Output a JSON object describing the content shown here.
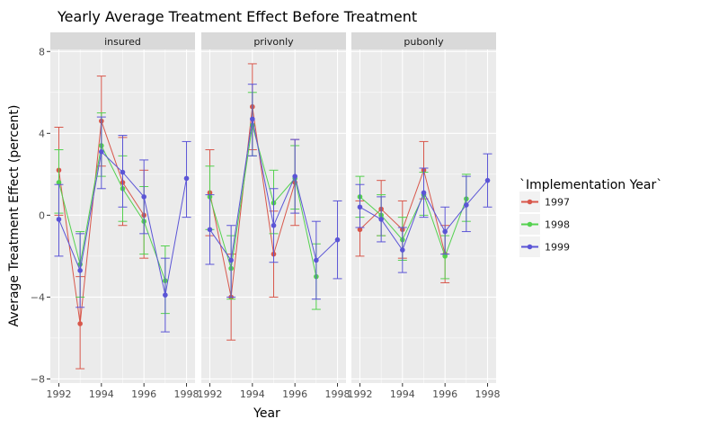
{
  "chart_data": {
    "type": "line",
    "title": "Yearly Average Treatment Effect Before Treatment",
    "xlabel": "Year",
    "ylabel": "Average Treatment Effect (percent)",
    "xlim": [
      1991.6,
      1998.4
    ],
    "ylim": [
      -8.2,
      8.1
    ],
    "x_ticks": [
      1992,
      1994,
      1996,
      1998
    ],
    "y_ticks": [
      -8,
      -4,
      0,
      4,
      8
    ],
    "grid": true,
    "legend": {
      "title": "`Implementation Year`",
      "placement": "right",
      "entries": [
        "1997",
        "1998",
        "1999"
      ]
    },
    "colors": {
      "1997": "#d8574b",
      "1998": "#54d14f",
      "1999": "#5b55d6",
      "panel_bg": "#ebebeb",
      "strip_bg": "#d9d9d9"
    },
    "panels": [
      {
        "label": "insured",
        "series": [
          {
            "name": "1997",
            "points": [
              {
                "x": 1992,
                "y": 2.2,
                "lo": 0.0,
                "hi": 4.3
              },
              {
                "x": 1993,
                "y": -5.3,
                "lo": -7.5,
                "hi": -3.0
              },
              {
                "x": 1994,
                "y": 4.6,
                "lo": 2.4,
                "hi": 6.8
              },
              {
                "x": 1995,
                "y": 1.6,
                "lo": -0.5,
                "hi": 3.8
              },
              {
                "x": 1996,
                "y": 0.0,
                "lo": -2.1,
                "hi": 2.2
              }
            ]
          },
          {
            "name": "1998",
            "points": [
              {
                "x": 1992,
                "y": 1.6,
                "lo": 0.1,
                "hi": 3.2
              },
              {
                "x": 1993,
                "y": -2.4,
                "lo": -4.0,
                "hi": -0.8
              },
              {
                "x": 1994,
                "y": 3.4,
                "lo": 1.9,
                "hi": 5.0
              },
              {
                "x": 1995,
                "y": 1.3,
                "lo": -0.3,
                "hi": 2.9
              },
              {
                "x": 1996,
                "y": -0.3,
                "lo": -1.9,
                "hi": 1.4
              },
              {
                "x": 1997,
                "y": -3.2,
                "lo": -4.8,
                "hi": -1.5
              }
            ]
          },
          {
            "name": "1999",
            "points": [
              {
                "x": 1992,
                "y": -0.2,
                "lo": -2.0,
                "hi": 1.5
              },
              {
                "x": 1993,
                "y": -2.7,
                "lo": -4.5,
                "hi": -0.9
              },
              {
                "x": 1994,
                "y": 3.1,
                "lo": 1.3,
                "hi": 4.8
              },
              {
                "x": 1995,
                "y": 2.1,
                "lo": 0.4,
                "hi": 3.9
              },
              {
                "x": 1996,
                "y": 0.9,
                "lo": -0.9,
                "hi": 2.7
              },
              {
                "x": 1997,
                "y": -3.9,
                "lo": -5.7,
                "hi": -2.1
              },
              {
                "x": 1998,
                "y": 1.8,
                "lo": -0.1,
                "hi": 3.6
              }
            ]
          }
        ]
      },
      {
        "label": "privonly",
        "series": [
          {
            "name": "1997",
            "points": [
              {
                "x": 1992,
                "y": 1.1,
                "lo": -1.0,
                "hi": 3.2
              },
              {
                "x": 1993,
                "y": -4.0,
                "lo": -6.1,
                "hi": -1.9
              },
              {
                "x": 1994,
                "y": 5.3,
                "lo": 3.2,
                "hi": 7.4
              },
              {
                "x": 1995,
                "y": -1.9,
                "lo": -4.0,
                "hi": 0.2
              },
              {
                "x": 1996,
                "y": 1.6,
                "lo": -0.5,
                "hi": 3.7
              }
            ]
          },
          {
            "name": "1998",
            "points": [
              {
                "x": 1992,
                "y": 0.9,
                "lo": -0.7,
                "hi": 2.4
              },
              {
                "x": 1993,
                "y": -2.6,
                "lo": -4.1,
                "hi": -1.0
              },
              {
                "x": 1994,
                "y": 4.4,
                "lo": 2.9,
                "hi": 6.0
              },
              {
                "x": 1995,
                "y": 0.6,
                "lo": -0.9,
                "hi": 2.2
              },
              {
                "x": 1996,
                "y": 1.8,
                "lo": 0.3,
                "hi": 3.4
              },
              {
                "x": 1997,
                "y": -3.0,
                "lo": -4.6,
                "hi": -1.4
              }
            ]
          },
          {
            "name": "1999",
            "points": [
              {
                "x": 1992,
                "y": -0.7,
                "lo": -2.4,
                "hi": 1.0
              },
              {
                "x": 1993,
                "y": -2.2,
                "lo": -4.0,
                "hi": -0.5
              },
              {
                "x": 1994,
                "y": 4.7,
                "lo": 2.9,
                "hi": 6.4
              },
              {
                "x": 1995,
                "y": -0.5,
                "lo": -2.3,
                "hi": 1.3
              },
              {
                "x": 1996,
                "y": 1.9,
                "lo": 0.1,
                "hi": 3.7
              },
              {
                "x": 1997,
                "y": -2.2,
                "lo": -4.1,
                "hi": -0.3
              },
              {
                "x": 1998,
                "y": -1.2,
                "lo": -3.1,
                "hi": 0.7
              }
            ]
          }
        ]
      },
      {
        "label": "pubonly",
        "series": [
          {
            "name": "1997",
            "points": [
              {
                "x": 1992,
                "y": -0.7,
                "lo": -2.0,
                "hi": 0.7
              },
              {
                "x": 1993,
                "y": 0.3,
                "lo": -1.0,
                "hi": 1.7
              },
              {
                "x": 1994,
                "y": -0.7,
                "lo": -2.1,
                "hi": 0.7
              },
              {
                "x": 1995,
                "y": 2.2,
                "lo": 0.8,
                "hi": 3.6
              },
              {
                "x": 1996,
                "y": -1.9,
                "lo": -3.3,
                "hi": -0.5
              }
            ]
          },
          {
            "name": "1998",
            "points": [
              {
                "x": 1992,
                "y": 0.9,
                "lo": -0.1,
                "hi": 1.9
              },
              {
                "x": 1993,
                "y": 0.0,
                "lo": -1.0,
                "hi": 1.0
              },
              {
                "x": 1994,
                "y": -1.2,
                "lo": -2.2,
                "hi": -0.1
              },
              {
                "x": 1995,
                "y": 1.0,
                "lo": 0.0,
                "hi": 2.1
              },
              {
                "x": 1996,
                "y": -2.0,
                "lo": -3.1,
                "hi": -1.0
              },
              {
                "x": 1997,
                "y": 0.8,
                "lo": -0.3,
                "hi": 2.0
              }
            ]
          },
          {
            "name": "1999",
            "points": [
              {
                "x": 1992,
                "y": 0.4,
                "lo": -0.6,
                "hi": 1.5
              },
              {
                "x": 1993,
                "y": -0.2,
                "lo": -1.3,
                "hi": 0.9
              },
              {
                "x": 1994,
                "y": -1.7,
                "lo": -2.8,
                "hi": -0.6
              },
              {
                "x": 1995,
                "y": 1.1,
                "lo": -0.1,
                "hi": 2.3
              },
              {
                "x": 1996,
                "y": -0.8,
                "lo": -1.9,
                "hi": 0.4
              },
              {
                "x": 1997,
                "y": 0.5,
                "lo": -0.8,
                "hi": 1.9
              },
              {
                "x": 1998,
                "y": 1.7,
                "lo": 0.4,
                "hi": 3.0
              }
            ]
          }
        ]
      }
    ]
  }
}
